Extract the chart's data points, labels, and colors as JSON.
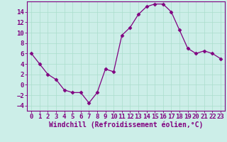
{
  "x": [
    0,
    1,
    2,
    3,
    4,
    5,
    6,
    7,
    8,
    9,
    10,
    11,
    12,
    13,
    14,
    15,
    16,
    17,
    18,
    19,
    20,
    21,
    22,
    23
  ],
  "y": [
    6,
    4,
    2,
    1,
    -1,
    -1.5,
    -1.5,
    -3.5,
    -1.5,
    3,
    2.5,
    9.5,
    11,
    13.5,
    15,
    15.5,
    15.5,
    14,
    10.5,
    7,
    6,
    6.5,
    6,
    5
  ],
  "line_color": "#800080",
  "marker": "D",
  "marker_size": 2.5,
  "bg_color": "#cceee8",
  "grid_color": "#aaddcc",
  "xlabel": "Windchill (Refroidissement éolien,°C)",
  "xlabel_color": "#800080",
  "tick_color": "#800080",
  "spine_color": "#800080",
  "ylim": [
    -5,
    16
  ],
  "xlim": [
    -0.5,
    23.5
  ],
  "yticks": [
    -4,
    -2,
    0,
    2,
    4,
    6,
    8,
    10,
    12,
    14
  ],
  "xticks": [
    0,
    1,
    2,
    3,
    4,
    5,
    6,
    7,
    8,
    9,
    10,
    11,
    12,
    13,
    14,
    15,
    16,
    17,
    18,
    19,
    20,
    21,
    22,
    23
  ],
  "font_size": 6.5,
  "label_font_size": 7
}
